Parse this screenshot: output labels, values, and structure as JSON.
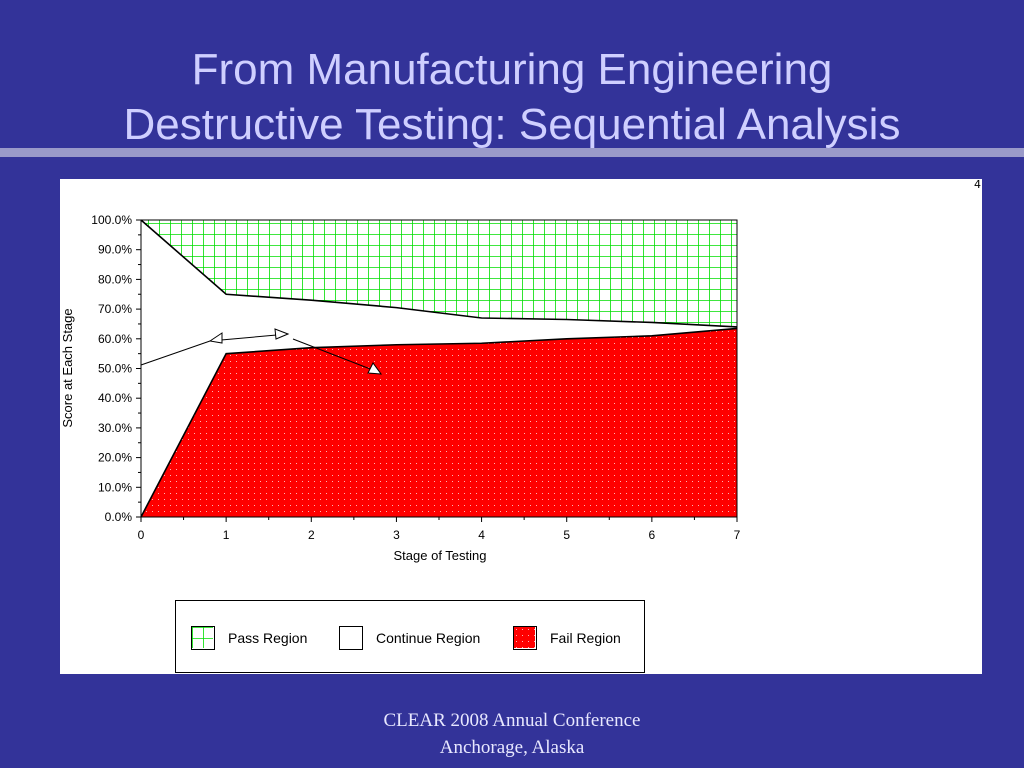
{
  "slide": {
    "title_line1": "From Manufacturing Engineering",
    "title_line2": "Destructive Testing: Sequential Analysis",
    "footer_line1": "CLEAR 2008 Annual Conference",
    "footer_line2": "Anchorage, Alaska",
    "corner_mark": "4"
  },
  "colors": {
    "background": "#333399",
    "pass": "#00dd00",
    "fail": "#ff0000",
    "continue": "#ffffff"
  },
  "chart_data": {
    "type": "area",
    "title": "",
    "xlabel": "Stage of Testing",
    "ylabel": "Score at Each Stage",
    "x": [
      0,
      1,
      2,
      3,
      4,
      5,
      6,
      7
    ],
    "xlim": [
      0,
      7
    ],
    "ylim": [
      0,
      100
    ],
    "y_ticks": [
      "0.0%",
      "10.0%",
      "20.0%",
      "30.0%",
      "40.0%",
      "50.0%",
      "60.0%",
      "70.0%",
      "80.0%",
      "90.0%",
      "100.0%"
    ],
    "x_ticks": [
      "0",
      "1",
      "2",
      "3",
      "4",
      "5",
      "6",
      "7"
    ],
    "grid": false,
    "legend_position": "bottom",
    "series": [
      {
        "name": "Pass Region",
        "upper_boundary": [
          100,
          100,
          100,
          100,
          100,
          100,
          100,
          100
        ],
        "lower_boundary": [
          100,
          75,
          73,
          70.5,
          67,
          66.5,
          65.5,
          64
        ]
      },
      {
        "name": "Continue Region",
        "upper_boundary": [
          100,
          75,
          73,
          70.5,
          67,
          66.5,
          65.5,
          64
        ],
        "lower_boundary": [
          0,
          55,
          57,
          58,
          58.5,
          60,
          61,
          63.5
        ]
      },
      {
        "name": "Fail Region",
        "upper_boundary": [
          0,
          55,
          57,
          58,
          58.5,
          60,
          61,
          63.5
        ],
        "lower_boundary": [
          0,
          0,
          0,
          0,
          0,
          0,
          0,
          0
        ]
      }
    ]
  },
  "legend": {
    "items": [
      {
        "label": "Pass Region"
      },
      {
        "label": "Continue Region"
      },
      {
        "label": "Fail Region"
      }
    ]
  }
}
